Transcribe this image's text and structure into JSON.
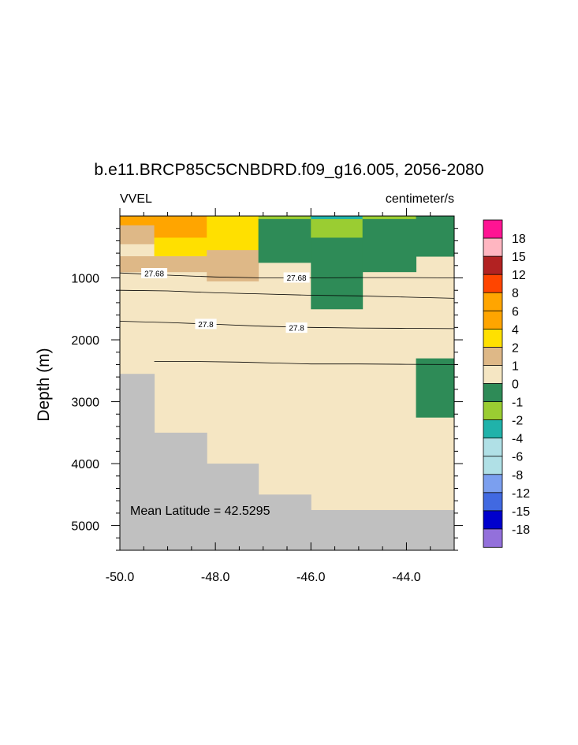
{
  "title": "b.e11.BRCP85C5CNBDRD.f09_g16.005, 2056-2080",
  "left_string": "VVEL",
  "right_string": "centimeter/s",
  "y_axis_title": "Depth (m)",
  "annotation": "Mean Latitude = 42.5295",
  "colors": {
    "land": "#c0c0c0",
    "background": "#ffffff"
  },
  "colorbar": {
    "labels": [
      "18",
      "15",
      "12",
      "8",
      "6",
      "4",
      "2",
      "1",
      "0",
      "-1",
      "-2",
      "-4",
      "-6",
      "-8",
      "-12",
      "-15",
      "-18"
    ],
    "colors": [
      "#ff1493",
      "#ffb6c1",
      "#b22222",
      "#ff4500",
      "#ffa500",
      "#ffa500",
      "#ffe000",
      "#deb887",
      "#f5e6c3",
      "#2e8b57",
      "#9acd32",
      "#20b2aa",
      "#b0e0e6",
      "#b0e0e6",
      "#7b9fef",
      "#4169e1",
      "#0000cd",
      "#9370db"
    ]
  },
  "chart_data": {
    "type": "heatmap",
    "title": "b.e11.BRCP85C5CNBDRD.f09_g16.005, 2056-2080",
    "variable": "VVEL",
    "units": "centimeter/s",
    "ylabel": "Depth (m)",
    "xlim": [
      -50.0,
      -43.0
    ],
    "ylim": [
      5400,
      0
    ],
    "x_ticks": [
      "-50.0",
      "-48.0",
      "-46.0",
      "-44.0"
    ],
    "x_tick_values": [
      -50,
      -48,
      -46,
      -44
    ],
    "y_ticks": [
      "1000",
      "2000",
      "3000",
      "4000",
      "5000"
    ],
    "y_tick_values": [
      1000,
      2000,
      3000,
      4000,
      5000
    ],
    "base_color": "#f5e6c3",
    "cells": [
      {
        "x0": -50.0,
        "x1": -49.28,
        "y0": 0,
        "y1": 150,
        "color": "#ffa500"
      },
      {
        "x0": -50.0,
        "x1": -49.28,
        "y0": 150,
        "y1": 450,
        "color": "#deb887"
      },
      {
        "x0": -50.0,
        "x1": -49.28,
        "y0": 650,
        "y1": 900,
        "color": "#deb887"
      },
      {
        "x0": -49.28,
        "x1": -48.18,
        "y0": 0,
        "y1": 350,
        "color": "#ffa500"
      },
      {
        "x0": -49.28,
        "x1": -48.18,
        "y0": 350,
        "y1": 650,
        "color": "#ffe000"
      },
      {
        "x0": -49.28,
        "x1": -48.18,
        "y0": 650,
        "y1": 900,
        "color": "#deb887"
      },
      {
        "x0": -48.18,
        "x1": -47.1,
        "y0": 0,
        "y1": 550,
        "color": "#ffe000"
      },
      {
        "x0": -48.18,
        "x1": -47.1,
        "y0": 550,
        "y1": 1050,
        "color": "#deb887"
      },
      {
        "x0": -47.1,
        "x1": -46.0,
        "y0": 0,
        "y1": 50,
        "color": "#9acd32"
      },
      {
        "x0": -47.1,
        "x1": -46.0,
        "y0": 50,
        "y1": 750,
        "color": "#2e8b57"
      },
      {
        "x0": -46.0,
        "x1": -44.92,
        "y0": 0,
        "y1": 50,
        "color": "#20b2aa"
      },
      {
        "x0": -46.0,
        "x1": -44.92,
        "y0": 50,
        "y1": 350,
        "color": "#9acd32"
      },
      {
        "x0": -46.0,
        "x1": -44.92,
        "y0": 350,
        "y1": 1500,
        "color": "#2e8b57"
      },
      {
        "x0": -44.92,
        "x1": -43.8,
        "y0": 0,
        "y1": 50,
        "color": "#9acd32"
      },
      {
        "x0": -44.92,
        "x1": -43.8,
        "y0": 50,
        "y1": 900,
        "color": "#2e8b57"
      },
      {
        "x0": -43.8,
        "x1": -43.0,
        "y0": 0,
        "y1": 650,
        "color": "#2e8b57"
      },
      {
        "x0": -43.8,
        "x1": -43.0,
        "y0": 2300,
        "y1": 3250,
        "color": "#2e8b57"
      }
    ],
    "land": [
      {
        "x0": -50.0,
        "x1": -49.28,
        "y0": 2550,
        "y1": 5400
      },
      {
        "x0": -49.28,
        "x1": -48.18,
        "y0": 3500,
        "y1": 5400
      },
      {
        "x0": -48.18,
        "x1": -47.1,
        "y0": 4000,
        "y1": 5400
      },
      {
        "x0": -47.1,
        "x1": -46.0,
        "y0": 4500,
        "y1": 5400
      },
      {
        "x0": -46.0,
        "x1": -43.0,
        "y0": 4750,
        "y1": 5400
      }
    ],
    "contours": [
      {
        "level": "27.68",
        "points": [
          [
            -50.0,
            920
          ],
          [
            -49.0,
            955
          ],
          [
            -48.0,
            985
          ],
          [
            -47.0,
            1000
          ],
          [
            -46.0,
            1000
          ],
          [
            -45.0,
            995
          ],
          [
            -44.0,
            995
          ],
          [
            -43.0,
            1000
          ]
        ],
        "labels": [
          {
            "text": "27.68",
            "x": -49.28,
            "y": 930
          },
          {
            "text": "27.68",
            "x": -46.3,
            "y": 1000
          }
        ]
      },
      {
        "level": "",
        "points": [
          [
            -50.0,
            1200
          ],
          [
            -49.0,
            1210
          ],
          [
            -48.0,
            1240
          ],
          [
            -47.0,
            1260
          ],
          [
            -46.0,
            1280
          ],
          [
            -45.0,
            1290
          ],
          [
            -44.0,
            1310
          ],
          [
            -43.0,
            1330
          ]
        ],
        "labels": []
      },
      {
        "level": "27.8",
        "points": [
          [
            -50.0,
            1700
          ],
          [
            -49.0,
            1720
          ],
          [
            -48.0,
            1750
          ],
          [
            -47.0,
            1780
          ],
          [
            -46.0,
            1800
          ],
          [
            -45.0,
            1810
          ],
          [
            -44.0,
            1815
          ],
          [
            -43.0,
            1820
          ]
        ],
        "labels": [
          {
            "text": "27.8",
            "x": -48.2,
            "y": 1750
          },
          {
            "text": "27.8",
            "x": -46.3,
            "y": 1810
          }
        ]
      },
      {
        "level": "",
        "points": [
          [
            -49.28,
            2350
          ],
          [
            -48.5,
            2350
          ],
          [
            -47.5,
            2360
          ],
          [
            -46.5,
            2380
          ],
          [
            -46.0,
            2390
          ],
          [
            -45.0,
            2390
          ],
          [
            -44.0,
            2395
          ],
          [
            -43.0,
            2400
          ]
        ],
        "labels": []
      }
    ]
  }
}
